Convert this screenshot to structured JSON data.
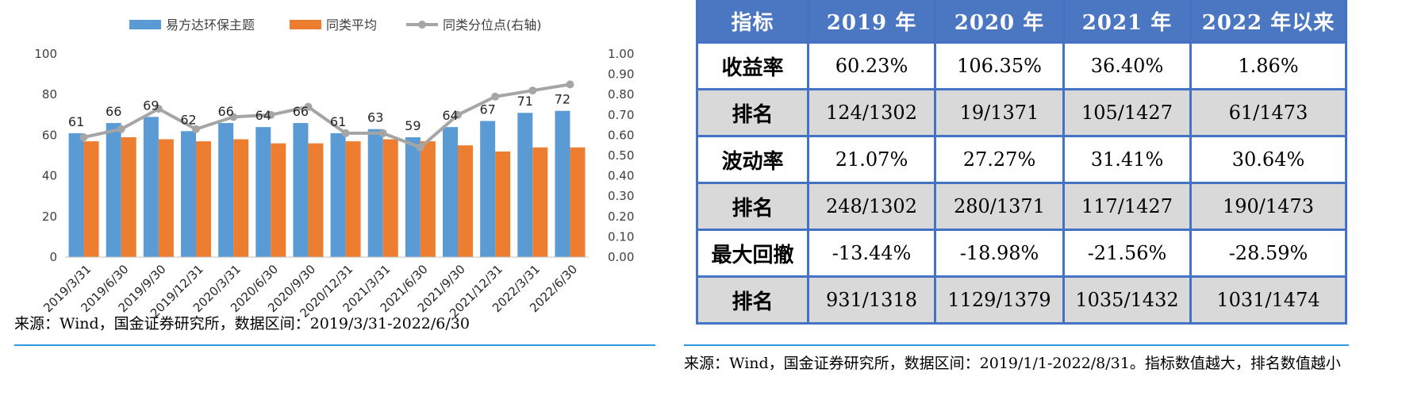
{
  "chart_data": {
    "type": "bar",
    "categories": [
      "2019/3/31",
      "2019/6/30",
      "2019/9/30",
      "2019/12/31",
      "2020/3/31",
      "2020/6/30",
      "2020/9/30",
      "2020/12/31",
      "2021/3/31",
      "2021/6/30",
      "2021/9/30",
      "2021/12/31",
      "2022/3/31",
      "2022/6/30"
    ],
    "series": [
      {
        "name": "易方达环保主题",
        "kind": "bar",
        "axis": "left",
        "color": "#5b9bd5",
        "values": [
          61,
          66,
          69,
          62,
          66,
          64,
          66,
          61,
          63,
          59,
          64,
          67,
          71,
          72
        ]
      },
      {
        "name": "同类平均",
        "kind": "bar",
        "axis": "left",
        "color": "#ed7d31",
        "values": [
          57,
          59,
          58,
          57,
          58,
          56,
          56,
          57,
          58,
          57,
          55,
          52,
          54,
          54
        ]
      },
      {
        "name": "同类分位点(右轴)",
        "kind": "line",
        "axis": "right",
        "color": "#a5a5a5",
        "values": [
          0.59,
          0.63,
          0.73,
          0.63,
          0.69,
          0.7,
          0.74,
          0.61,
          0.61,
          0.54,
          0.7,
          0.79,
          0.82,
          0.85
        ]
      }
    ],
    "bar_labels": [
      "61",
      "66",
      "69",
      "62",
      "66",
      "64",
      "66",
      "61",
      "63",
      "59",
      "64",
      "67",
      "71",
      "72"
    ],
    "ylim_left": [
      0,
      100
    ],
    "yticks_left": [
      "0",
      "20",
      "40",
      "60",
      "80",
      "100"
    ],
    "ylim_right": [
      0,
      1
    ],
    "yticks_right": [
      "0.00",
      "0.10",
      "0.20",
      "0.30",
      "0.40",
      "0.50",
      "0.60",
      "0.70",
      "0.80",
      "0.90",
      "1.00"
    ],
    "legend_position": "top",
    "grid": false
  },
  "left_source": "来源：Wind，国金证券研究所，数据区间：2019/3/31-2022/6/30",
  "right_source": "来源：Wind，国金证券研究所，数据区间：2019/1/1-2022/8/31。指标数值越大，排名数值越小",
  "table": {
    "headers": [
      "指标",
      "2019 年",
      "2020 年",
      "2021 年",
      "2022 年以来"
    ],
    "rows": [
      {
        "label": "收益率",
        "values": [
          "60.23%",
          "106.35%",
          "36.40%",
          "1.86%"
        ]
      },
      {
        "label": "排名",
        "values": [
          "124/1302",
          "19/1371",
          "105/1427",
          "61/1473"
        ]
      },
      {
        "label": "波动率",
        "values": [
          "21.07%",
          "27.27%",
          "31.41%",
          "30.64%"
        ]
      },
      {
        "label": "排名",
        "values": [
          "248/1302",
          "280/1371",
          "117/1427",
          "190/1473"
        ]
      },
      {
        "label": "最大回撤",
        "values": [
          "-13.44%",
          "-18.98%",
          "-21.56%",
          "-28.59%"
        ]
      },
      {
        "label": "排名",
        "values": [
          "931/1318",
          "1129/1379",
          "1035/1432",
          "1031/1474"
        ]
      }
    ]
  }
}
